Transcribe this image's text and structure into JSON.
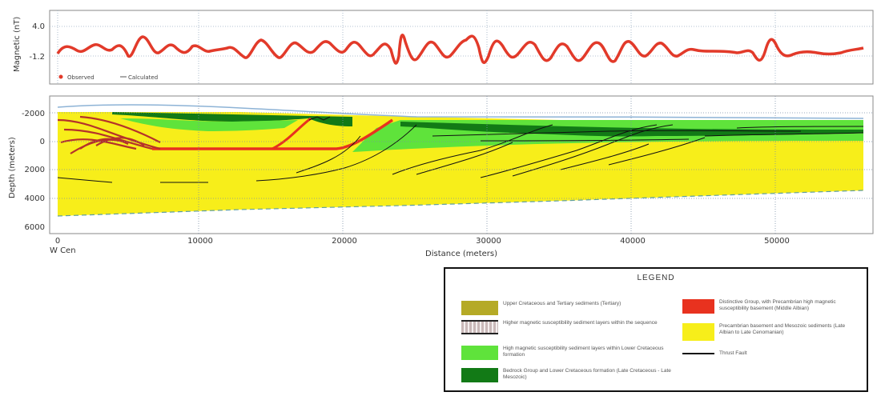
{
  "magnetic_panel": {
    "ylabel": "Magnetic (nT)",
    "y_ticks": [
      "4.0",
      "-1.2"
    ],
    "legend_observed": "Observed",
    "legend_calculated": "Calculated"
  },
  "section_panel": {
    "ylabel": "Depth (meters)",
    "y_ticks": [
      "-2000",
      "0",
      "2000",
      "4000",
      "6000"
    ],
    "x_ticks": [
      "0",
      "10000",
      "20000",
      "30000",
      "40000",
      "50000"
    ],
    "xlabel": "Distance (meters)",
    "origin_label": "W Cen"
  },
  "legend": {
    "title": "LEGEND",
    "items": [
      {
        "label": "Upper Cretaceous and Tertiary sediments (Tertiary)",
        "color": "#b5aa26",
        "style": "fill"
      },
      {
        "label": "Higher magnetic susceptibility sediment layers within the sequence",
        "color": "#c9b8b8",
        "style": "banded"
      },
      {
        "label": "High magnetic susceptibility sediment layers within Lower Cretaceous formation",
        "color": "#5fe33b",
        "style": "fill"
      },
      {
        "label": "Bedrock Group and Lower Cretaceous formation (Late Cretaceous - Late Mesozoic)",
        "color": "#127a16",
        "style": "fill"
      },
      {
        "label": "Distinctive Group, with Precambrian high magnetic susceptibility basement (Middle Albian)",
        "color": "#e8321f",
        "style": "fill"
      },
      {
        "label": "Precambrian basement and Mesozoic sediments (Late Albian to Late Cenomanian)",
        "color": "#f7ee1a",
        "style": "fill"
      },
      {
        "label": "Thrust Fault",
        "color": "#111111",
        "style": "line"
      }
    ]
  }
}
